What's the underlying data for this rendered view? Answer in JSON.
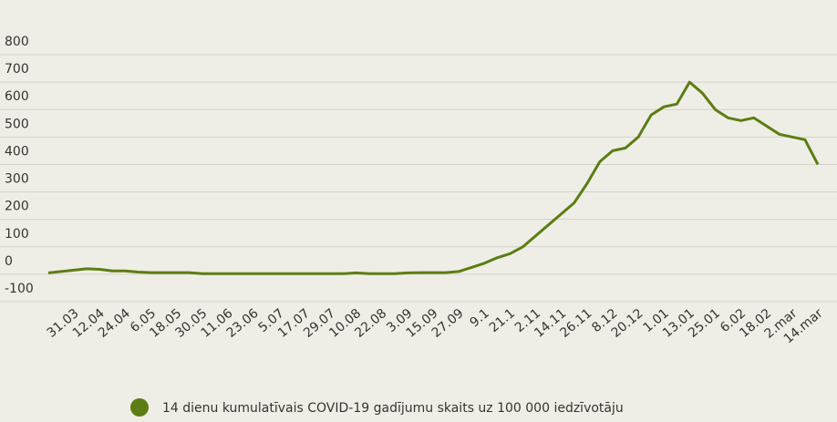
{
  "chart_data": {
    "type": "line",
    "categories": [
      null,
      null,
      "31.03",
      null,
      "12.04",
      null,
      "24.04",
      null,
      "6.05",
      null,
      "18.05",
      null,
      "30.05",
      null,
      "11.06",
      null,
      "23.06",
      null,
      "5.07",
      null,
      "17.07",
      null,
      "29.07",
      null,
      "10.08",
      null,
      "22.08",
      null,
      "3.09",
      null,
      "15.09",
      null,
      "27.09",
      null,
      "9.1",
      null,
      "21.1",
      null,
      "2.11",
      null,
      "14.11",
      null,
      "26.11",
      null,
      "8.12",
      null,
      "20.12",
      null,
      "1.01",
      null,
      "13.01",
      null,
      "25.01",
      null,
      "6.02",
      null,
      "18.02",
      null,
      "2.mar",
      null,
      "14.mar"
    ],
    "series": [
      {
        "name": "14 dienu kumulatīvais COVID-19 gadījumu skaits uz 100 000 iedzīvotāju",
        "color": "#5c7d12",
        "values": [
          5,
          10,
          15,
          20,
          18,
          12,
          12,
          8,
          6,
          6,
          6,
          6,
          2,
          2,
          2,
          2,
          2,
          2,
          2,
          2,
          2,
          2,
          2,
          2,
          5,
          2,
          2,
          2,
          5,
          6,
          6,
          6,
          10,
          25,
          40,
          60,
          75,
          100,
          140,
          180,
          220,
          260,
          330,
          410,
          450,
          460,
          500,
          580,
          610,
          620,
          700,
          660,
          600,
          570,
          560,
          570,
          540,
          510,
          500,
          490,
          400
        ]
      }
    ],
    "ylim": [
      -100,
      800
    ],
    "yticks": [
      -100,
      0,
      100,
      200,
      300,
      400,
      500,
      600,
      700,
      800
    ],
    "grid": true
  }
}
